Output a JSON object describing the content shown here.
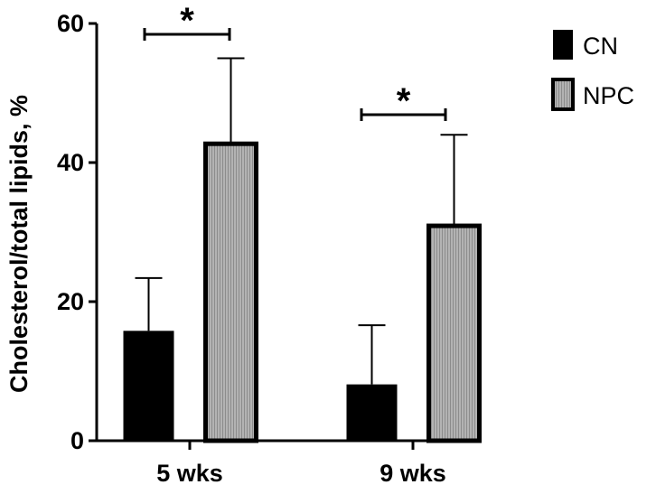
{
  "chart_data": {
    "type": "bar",
    "title": "",
    "xlabel": "",
    "ylabel": "Cholesterol/total lipids, %",
    "ylim": [
      0,
      60
    ],
    "yticks": [
      0,
      20,
      40,
      60
    ],
    "categories": [
      "5 wks",
      "9 wks"
    ],
    "series": [
      {
        "name": "CN",
        "values": [
          15.8,
          8.1
        ],
        "errors": [
          7.6,
          8.5
        ],
        "color": "#000000"
      },
      {
        "name": "NPC",
        "values": [
          42.7,
          30.9
        ],
        "errors": [
          12.3,
          13.1
        ],
        "color": "#a6a6a6"
      }
    ],
    "significance": [
      {
        "category": "5 wks",
        "label": "*"
      },
      {
        "category": "9 wks",
        "label": "*"
      }
    ],
    "grid": false,
    "legend_position": "top-right"
  }
}
